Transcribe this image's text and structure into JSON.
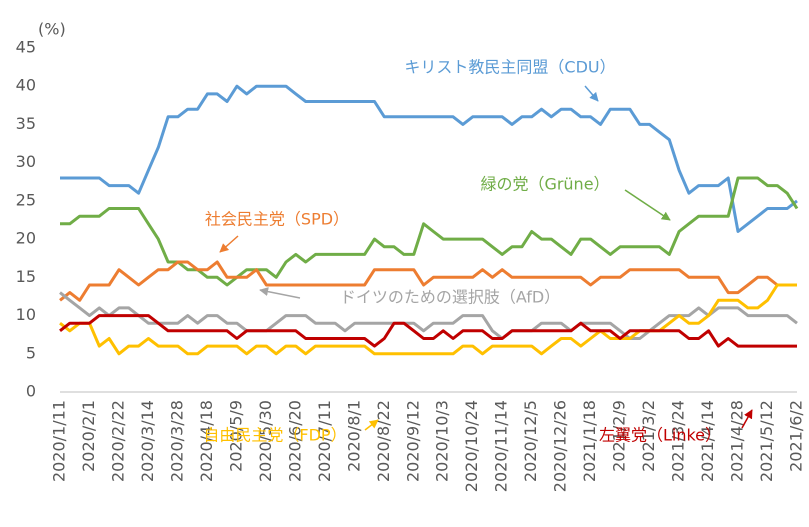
{
  "chart_data": {
    "type": "line",
    "y_label": "(%)",
    "categories": [
      "2020/1/11",
      null,
      null,
      "2020/2/1",
      null,
      null,
      "2020/2/22",
      null,
      null,
      "2020/3/14",
      null,
      null,
      "2020/3/28",
      null,
      null,
      "2020/4/18",
      null,
      null,
      "2020/5/9",
      null,
      null,
      "2020/5/30",
      null,
      null,
      "2020/6/20",
      null,
      null,
      "2020/7/11",
      null,
      null,
      "2020/8/1",
      null,
      null,
      "2020/8/22",
      null,
      null,
      "2020/9/12",
      null,
      null,
      "2020/10/3",
      null,
      null,
      "2020/10/24",
      null,
      null,
      "2020/11/14",
      null,
      null,
      "2020/12/5",
      null,
      null,
      "2020/12/26",
      null,
      null,
      "2021/1/18",
      null,
      null,
      "2021/2/9",
      null,
      null,
      "2021/3/2",
      null,
      null,
      "2021/3/24",
      null,
      null,
      "2021/4/14",
      null,
      null,
      "2021/4/28",
      null,
      null,
      "2021/5/12",
      null,
      null,
      "2021/6/2"
    ],
    "series": [
      {
        "name": "キリスト教民主同盟（CDU）",
        "color": "#5b9bd5",
        "values": [
          28,
          28,
          28,
          28,
          28,
          27,
          27,
          27,
          26,
          29,
          32,
          36,
          36,
          37,
          37,
          39,
          39,
          38,
          40,
          39,
          40,
          40,
          40,
          40,
          39,
          38,
          38,
          38,
          38,
          38,
          38,
          38,
          38,
          36,
          36,
          36,
          36,
          36,
          36,
          36,
          36,
          35,
          36,
          36,
          36,
          36,
          35,
          36,
          36,
          37,
          36,
          37,
          37,
          36,
          36,
          35,
          37,
          37,
          37,
          35,
          35,
          34,
          33,
          29,
          26,
          27,
          27,
          27,
          28,
          21,
          22,
          23,
          24,
          24,
          24,
          25
        ]
      },
      {
        "name": "緑の党（Grüne）",
        "color": "#70ad47",
        "values": [
          22,
          22,
          23,
          23,
          23,
          24,
          24,
          24,
          24,
          22,
          20,
          17,
          17,
          16,
          16,
          15,
          15,
          14,
          15,
          16,
          16,
          16,
          15,
          17,
          18,
          17,
          18,
          18,
          18,
          18,
          18,
          18,
          20,
          19,
          19,
          18,
          18,
          22,
          21,
          20,
          20,
          20,
          20,
          20,
          19,
          18,
          19,
          19,
          21,
          20,
          20,
          19,
          18,
          20,
          20,
          19,
          18,
          19,
          19,
          19,
          19,
          19,
          18,
          21,
          22,
          23,
          23,
          23,
          23,
          28,
          28,
          28,
          27,
          27,
          26,
          24
        ]
      },
      {
        "name": "社会民主党（SPD）",
        "color": "#ed7d31",
        "values": [
          12,
          13,
          12,
          14,
          14,
          14,
          16,
          15,
          14,
          15,
          16,
          16,
          17,
          17,
          16,
          16,
          17,
          15,
          15,
          15,
          16,
          14,
          14,
          14,
          14,
          14,
          14,
          14,
          14,
          14,
          14,
          14,
          16,
          16,
          16,
          16,
          16,
          14,
          15,
          15,
          15,
          15,
          15,
          16,
          15,
          16,
          15,
          15,
          15,
          15,
          15,
          15,
          15,
          15,
          14,
          15,
          15,
          15,
          16,
          16,
          16,
          16,
          16,
          16,
          15,
          15,
          15,
          15,
          13,
          13,
          14,
          15,
          15,
          14,
          14,
          14
        ]
      },
      {
        "name": "ドイツのための選択肢（AfD）",
        "color": "#a5a5a5",
        "values": [
          13,
          12,
          11,
          10,
          11,
          10,
          11,
          11,
          10,
          9,
          9,
          9,
          9,
          10,
          9,
          10,
          10,
          9,
          9,
          8,
          8,
          8,
          9,
          10,
          10,
          10,
          9,
          9,
          9,
          8,
          9,
          9,
          9,
          9,
          9,
          9,
          9,
          8,
          9,
          9,
          9,
          10,
          10,
          10,
          8,
          7,
          8,
          8,
          8,
          9,
          9,
          9,
          8,
          9,
          9,
          9,
          9,
          8,
          7,
          7,
          8,
          9,
          10,
          10,
          10,
          11,
          10,
          11,
          11,
          11,
          10,
          10,
          10,
          10,
          10,
          9
        ]
      },
      {
        "name": "自由民主党（FDP）",
        "color": "#ffc000",
        "values": [
          9,
          8,
          9,
          9,
          6,
          7,
          5,
          6,
          6,
          7,
          6,
          6,
          6,
          5,
          5,
          6,
          6,
          6,
          6,
          5,
          6,
          6,
          5,
          6,
          6,
          5,
          6,
          6,
          6,
          6,
          6,
          6,
          5,
          5,
          5,
          5,
          5,
          5,
          5,
          5,
          5,
          6,
          6,
          5,
          6,
          6,
          6,
          6,
          6,
          5,
          6,
          7,
          7,
          6,
          7,
          8,
          7,
          7,
          7,
          8,
          8,
          8,
          9,
          10,
          9,
          9,
          10,
          12,
          12,
          12,
          11,
          11,
          12,
          14,
          14,
          14
        ]
      },
      {
        "name": "左翼党（Linke）",
        "color": "#c00000",
        "values": [
          8,
          9,
          9,
          9,
          10,
          10,
          10,
          10,
          10,
          10,
          9,
          8,
          8,
          8,
          8,
          8,
          8,
          8,
          7,
          8,
          8,
          8,
          8,
          8,
          8,
          7,
          7,
          7,
          7,
          7,
          7,
          7,
          6,
          7,
          9,
          9,
          8,
          7,
          7,
          8,
          7,
          8,
          8,
          8,
          7,
          7,
          8,
          8,
          8,
          8,
          8,
          8,
          8,
          9,
          8,
          8,
          8,
          7,
          8,
          8,
          8,
          8,
          8,
          8,
          7,
          7,
          8,
          6,
          7,
          6,
          6,
          6,
          6,
          6,
          6,
          6
        ]
      }
    ],
    "ylim": [
      0,
      45
    ],
    "yticks": [
      0,
      5,
      10,
      15,
      20,
      25,
      30,
      35,
      40,
      45
    ],
    "grid": false
  }
}
